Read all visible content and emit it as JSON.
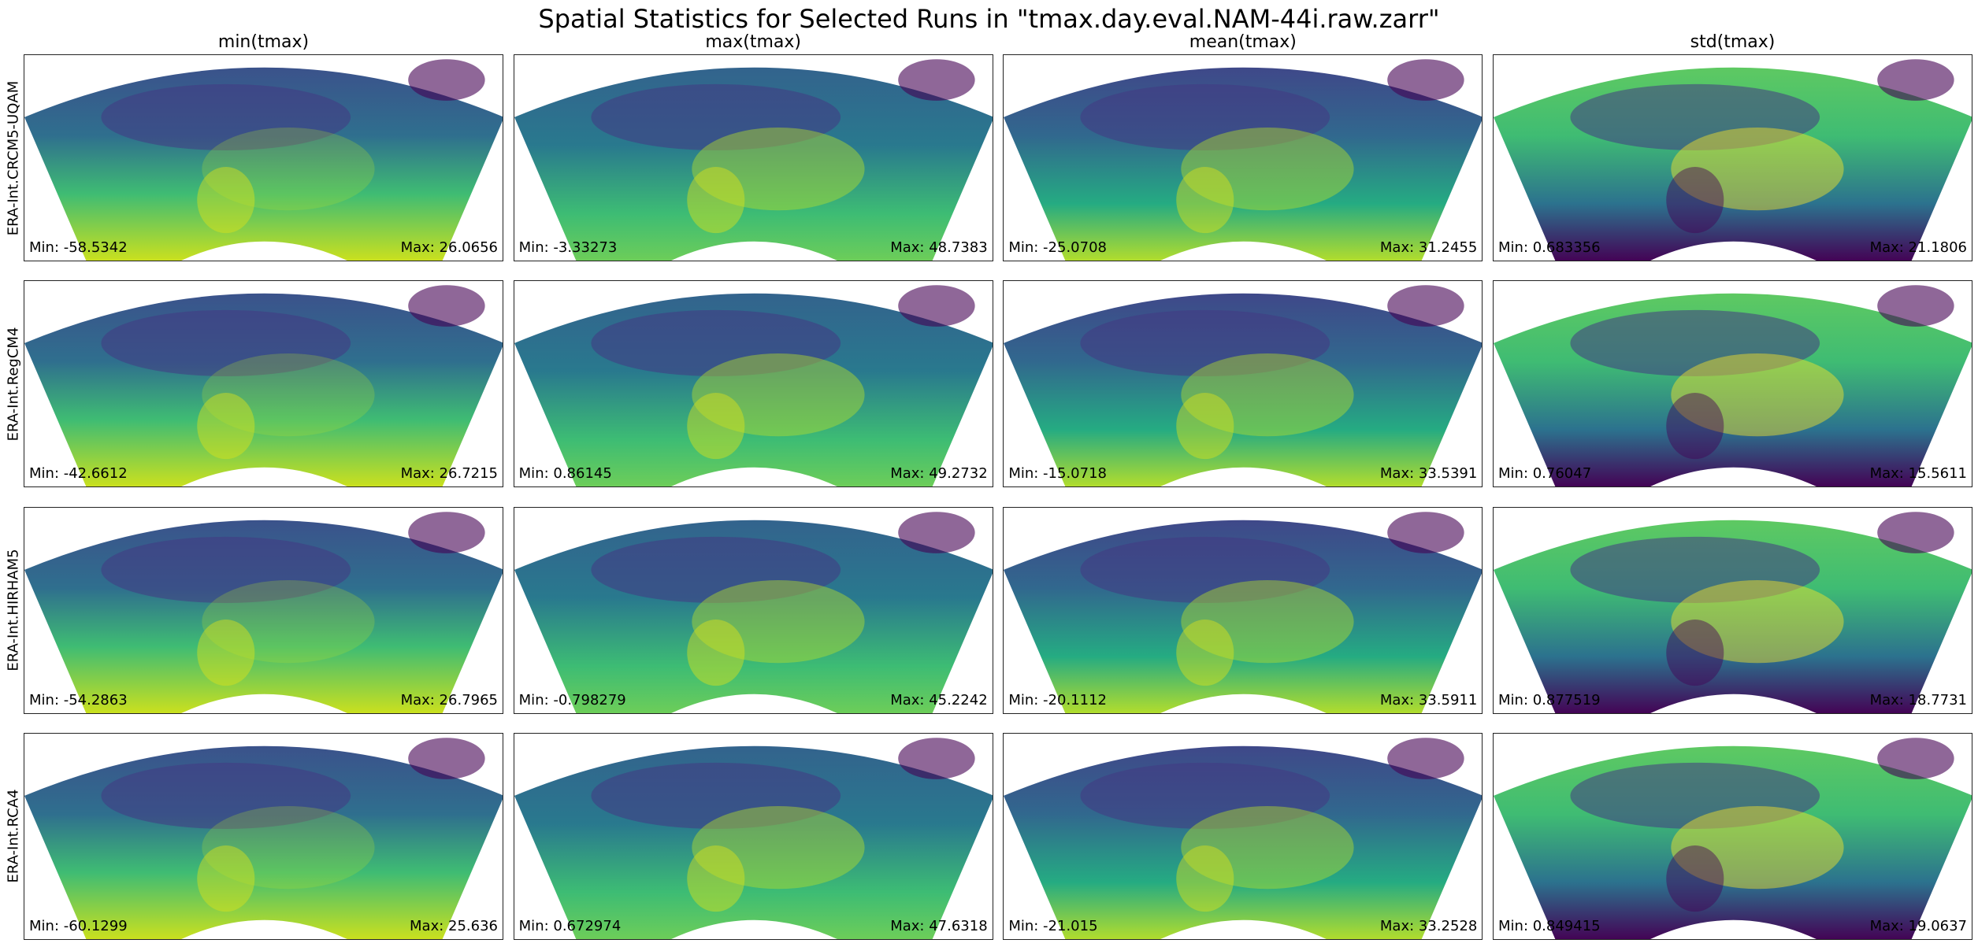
{
  "title": "Spatial Statistics for Selected Runs in \"tmax.day.eval.NAM-44i.raw.zarr\"",
  "chart_data": {
    "type": "heatmap",
    "colormap": "viridis",
    "columns": [
      "min(tmax)",
      "max(tmax)",
      "mean(tmax)",
      "std(tmax)"
    ],
    "rows": [
      {
        "label": "ERA-Int.CRCM5-UQAM",
        "panels": [
          {
            "min": "Min: -58.5342",
            "max": "Max: 26.0656"
          },
          {
            "min": "Min: -3.33273",
            "max": "Max: 48.7383"
          },
          {
            "min": "Min: -25.0708",
            "max": "Max: 31.2455"
          },
          {
            "min": "Min: 0.683356",
            "max": "Max: 21.1806"
          }
        ]
      },
      {
        "label": "ERA-Int.RegCM4",
        "panels": [
          {
            "min": "Min: -42.6612",
            "max": "Max: 26.7215"
          },
          {
            "min": "Min: 0.86145",
            "max": "Max: 49.2732"
          },
          {
            "min": "Min: -15.0718",
            "max": "Max: 33.5391"
          },
          {
            "min": "Min: 0.76047",
            "max": "Max: 15.5611"
          }
        ]
      },
      {
        "label": "ERA-Int.HIRHAM5",
        "panels": [
          {
            "min": "Min: -54.2863",
            "max": "Max: 26.7965"
          },
          {
            "min": "Min: -0.798279",
            "max": "Max: 45.2242"
          },
          {
            "min": "Min: -20.1112",
            "max": "Max: 33.5911"
          },
          {
            "min": "Min: 0.877519",
            "max": "Max: 18.7731"
          }
        ]
      },
      {
        "label": "ERA-Int.RCA4",
        "panels": [
          {
            "min": "Min: -60.1299",
            "max": "Max: 25.636"
          },
          {
            "min": "Min: 0.672974",
            "max": "Max: 47.6318"
          },
          {
            "min": "Min: -21.015",
            "max": "Max: 33.2528"
          },
          {
            "min": "Min: 0.849415",
            "max": "Max: 19.0637"
          }
        ]
      }
    ]
  }
}
